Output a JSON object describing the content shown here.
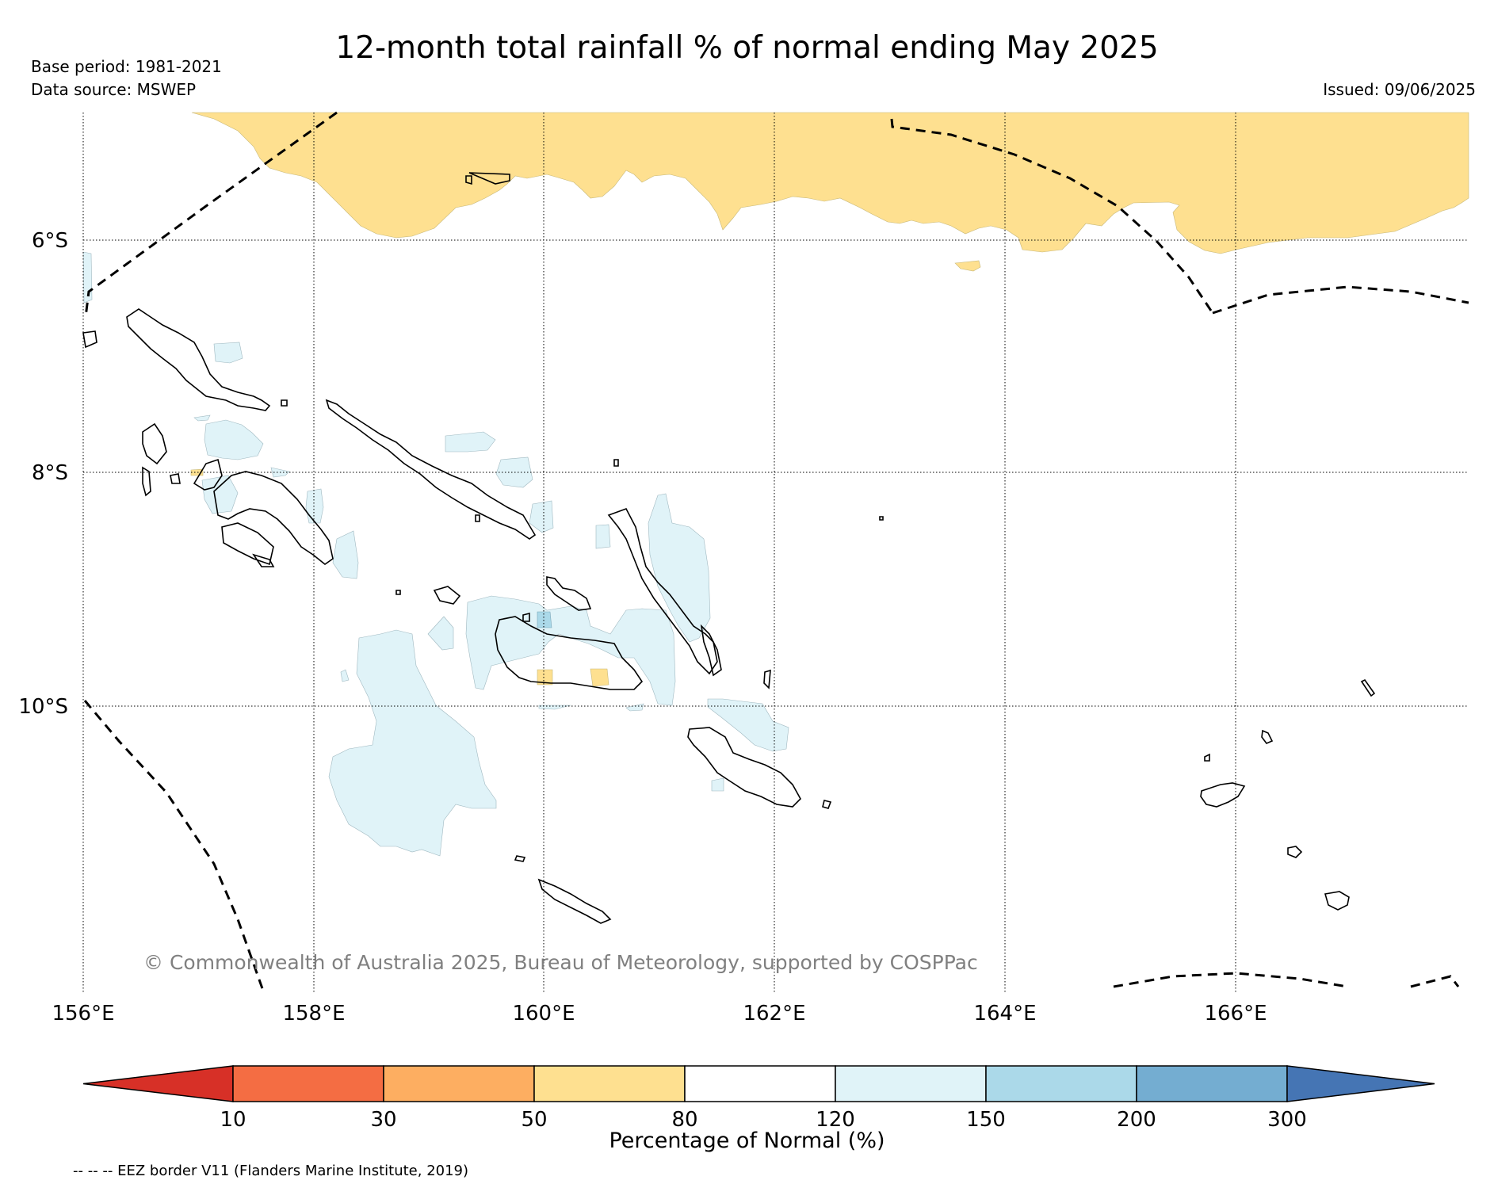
{
  "header": {
    "title": "12-month total rainfall % of normal ending May 2025",
    "base_period": "Base period: 1981-2021",
    "data_source": "Data source: MSWEP",
    "issued": "Issued: 09/06/2025"
  },
  "map": {
    "lon_labels": [
      "156°E",
      "158°E",
      "160°E",
      "162°E",
      "164°E",
      "166°E"
    ],
    "lat_labels": [
      "6°S",
      "8°S",
      "10°S"
    ],
    "copyright": "© Commonwealth of Australia 2025, Bureau of Meteorology, supported by COSPPac"
  },
  "colorbar": {
    "title": "Percentage of Normal (%)",
    "tick_labels": [
      "10",
      "30",
      "50",
      "80",
      "120",
      "150",
      "200",
      "300"
    ],
    "colors": [
      "#d73027",
      "#f46d43",
      "#fdae61",
      "#fee090",
      "#ffffff",
      "#e0f3f8",
      "#abd9e9",
      "#74add1",
      "#4575b4"
    ]
  },
  "footer": {
    "eez_note": "-- -- -- EEZ border V11 (Flanders Marine Institute, 2019)"
  }
}
